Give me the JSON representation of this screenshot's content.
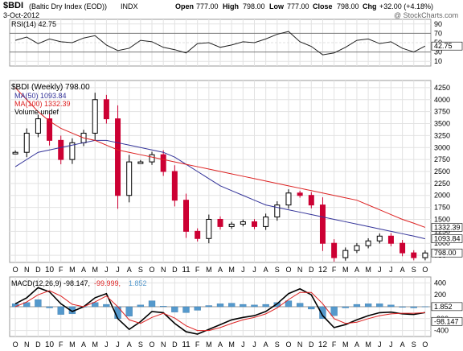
{
  "header": {
    "symbol": "$BDI",
    "name": "(Baltic Dry Index (EOD))",
    "exchange": "INDX",
    "date": "3-Oct-2012",
    "open_label": "Open",
    "open": "777.00",
    "high_label": "High",
    "high": "798.00",
    "low_label": "Low",
    "low": "777.00",
    "close_label": "Close",
    "close": "798.00",
    "chg_label": "Chg",
    "chg": "+32.00 (+4.18%)",
    "watermark": "@ StockCharts.com"
  },
  "rsi_panel": {
    "label": "RSI(14) 42.75",
    "ticks": [
      "90",
      "70",
      "50",
      "30",
      "10"
    ],
    "current": "42.75"
  },
  "price_panel": {
    "label": "$BDI (Weekly) 798.00",
    "ma50_label": "MA(50) 1093.84",
    "ma100_label": "MA(100) 1332.39",
    "volume_label": "Volume undef",
    "ticks": [
      "4250",
      "4000",
      "3750",
      "3500",
      "3250",
      "3000",
      "2750",
      "2500",
      "2250",
      "2000",
      "1750",
      "1500",
      "1250",
      "1000",
      "750"
    ],
    "badge_ma100": "1332.39",
    "badge_ma50": "1093.84",
    "badge_price": "798.00"
  },
  "macd_panel": {
    "label_main": "MACD(12,26,9) -98.147,",
    "label_signal": "-99.999,",
    "label_hist": "1.852",
    "ticks": [
      "400",
      "200",
      "0",
      "-200",
      "-400"
    ],
    "badge_hist": "1.852",
    "badge_macd": "-98.147"
  },
  "x_axis": {
    "top": [
      "O",
      "N",
      "D",
      "10",
      "F",
      "M",
      "A",
      "M",
      "J",
      "J",
      "A",
      "S",
      "O",
      "N",
      "D",
      "11",
      "F",
      "M",
      "A",
      "M",
      "J",
      "J",
      "A",
      "S",
      "O",
      "N",
      "D",
      "12",
      "F",
      "M",
      "A",
      "M",
      "J",
      "J",
      "A",
      "S",
      "O"
    ],
    "bottom": [
      "O",
      "N",
      "D",
      "10",
      "F",
      "M",
      "A",
      "M",
      "J",
      "J",
      "A",
      "S",
      "O",
      "N",
      "D",
      "11",
      "F",
      "M",
      "A",
      "M",
      "J",
      "J",
      "A",
      "S",
      "O",
      "N",
      "D",
      "12",
      "F",
      "M",
      "A",
      "M",
      "J",
      "J",
      "A",
      "S",
      "O"
    ]
  },
  "colors": {
    "up": "#000000",
    "down": "#cc0033",
    "ma50": "#333399",
    "ma100": "#dd2222",
    "hist": "#5599cc",
    "macd": "#000000",
    "signal": "#dd2222"
  },
  "chart_data": [
    {
      "type": "line",
      "title": "RSI(14) 42.75",
      "x": [
        "2009-10",
        "2009-11",
        "2009-12",
        "2010-01",
        "2010-02",
        "2010-03",
        "2010-04",
        "2010-05",
        "2010-06",
        "2010-07",
        "2010-08",
        "2010-09",
        "2010-10",
        "2010-11",
        "2010-12",
        "2011-01",
        "2011-02",
        "2011-03",
        "2011-04",
        "2011-05",
        "2011-06",
        "2011-07",
        "2011-08",
        "2011-09",
        "2011-10",
        "2011-11",
        "2011-12",
        "2012-01",
        "2012-02",
        "2012-03",
        "2012-04",
        "2012-05",
        "2012-06",
        "2012-07",
        "2012-08",
        "2012-09",
        "2012-10"
      ],
      "series": [
        {
          "values": [
            55,
            62,
            48,
            58,
            52,
            50,
            60,
            65,
            45,
            33,
            38,
            55,
            52,
            40,
            35,
            28,
            48,
            50,
            40,
            45,
            52,
            50,
            58,
            68,
            74,
            52,
            42,
            24,
            28,
            40,
            55,
            58,
            48,
            52,
            38,
            30,
            42.75
          ]
        }
      ],
      "ylim": [
        0,
        100
      ],
      "yticks": [
        10,
        30,
        50,
        70,
        90
      ]
    },
    {
      "type": "candlestick",
      "title": "$BDI (Weekly) 798.00",
      "x": [
        "2009-10",
        "2009-11",
        "2009-12",
        "2010-01",
        "2010-02",
        "2010-03",
        "2010-04",
        "2010-05",
        "2010-06",
        "2010-07",
        "2010-08",
        "2010-09",
        "2010-10",
        "2010-11",
        "2010-12",
        "2011-01",
        "2011-02",
        "2011-03",
        "2011-04",
        "2011-05",
        "2011-06",
        "2011-07",
        "2011-08",
        "2011-09",
        "2011-10",
        "2011-11",
        "2011-12",
        "2012-01",
        "2012-02",
        "2012-03",
        "2012-04",
        "2012-05",
        "2012-06",
        "2012-07",
        "2012-08",
        "2012-09",
        "2012-10"
      ],
      "series": [
        {
          "name": "price",
          "values": [
            2900,
            3300,
            3600,
            3150,
            2750,
            3100,
            3300,
            4000,
            3600,
            2000,
            2700,
            2700,
            2850,
            2500,
            1900,
            1250,
            1100,
            1500,
            1350,
            1400,
            1450,
            1350,
            1550,
            1800,
            2050,
            2000,
            1800,
            1000,
            700,
            850,
            950,
            1050,
            1150,
            1000,
            800,
            700,
            798
          ]
        },
        {
          "name": "MA(50)",
          "values": [
            2600,
            2750,
            2900,
            2950,
            3000,
            3050,
            3100,
            3150,
            3150,
            3100,
            3050,
            3000,
            2950,
            2900,
            2800,
            2650,
            2500,
            2350,
            2200,
            2100,
            2000,
            1900,
            1800,
            1750,
            1700,
            1650,
            1600,
            1550,
            1500,
            1450,
            1400,
            1350,
            1300,
            1250,
            1200,
            1150,
            1093.84
          ]
        },
        {
          "name": "MA(100)",
          "values": [
            4250,
            4000,
            3750,
            3550,
            3400,
            3300,
            3200,
            3150,
            3050,
            2950,
            2900,
            2850,
            2800,
            2750,
            2700,
            2650,
            2600,
            2550,
            2500,
            2450,
            2400,
            2350,
            2300,
            2250,
            2200,
            2150,
            2100,
            2050,
            2000,
            1950,
            1900,
            1800,
            1700,
            1600,
            1500,
            1420,
            1332.39
          ]
        }
      ],
      "ylim": [
        600,
        4400
      ],
      "yticks": [
        750,
        1000,
        1250,
        1500,
        1750,
        2000,
        2250,
        2500,
        2750,
        3000,
        3250,
        3500,
        3750,
        4000,
        4250
      ]
    },
    {
      "type": "line",
      "title": "MACD(12,26,9) -98.147, -99.999, 1.852",
      "x": [
        "2009-10",
        "2009-11",
        "2009-12",
        "2010-01",
        "2010-02",
        "2010-03",
        "2010-04",
        "2010-05",
        "2010-06",
        "2010-07",
        "2010-08",
        "2010-09",
        "2010-10",
        "2010-11",
        "2010-12",
        "2011-01",
        "2011-02",
        "2011-03",
        "2011-04",
        "2011-05",
        "2011-06",
        "2011-07",
        "2011-08",
        "2011-09",
        "2011-10",
        "2011-11",
        "2011-12",
        "2012-01",
        "2012-02",
        "2012-03",
        "2012-04",
        "2012-05",
        "2012-06",
        "2012-07",
        "2012-08",
        "2012-09",
        "2012-10"
      ],
      "series": [
        {
          "name": "MACD(12,26,9)",
          "values": [
            50,
            150,
            320,
            250,
            50,
            -80,
            0,
            150,
            220,
            -200,
            -380,
            -250,
            -80,
            -100,
            -280,
            -420,
            -460,
            -380,
            -300,
            -220,
            -180,
            -150,
            -80,
            50,
            220,
            300,
            200,
            -150,
            -350,
            -300,
            -220,
            -150,
            -100,
            -90,
            -120,
            -130,
            -98.147
          ]
        },
        {
          "name": "signal",
          "values": [
            0,
            80,
            200,
            270,
            180,
            40,
            0,
            80,
            180,
            0,
            -220,
            -280,
            -180,
            -110,
            -190,
            -320,
            -400,
            -400,
            -350,
            -280,
            -220,
            -180,
            -120,
            -20,
            120,
            240,
            240,
            50,
            -200,
            -280,
            -260,
            -200,
            -150,
            -120,
            -110,
            -110,
            -99.999
          ]
        },
        {
          "name": "histogram",
          "values": [
            50,
            70,
            120,
            -20,
            -130,
            -120,
            0,
            70,
            40,
            -200,
            -160,
            30,
            100,
            10,
            -90,
            -100,
            -60,
            20,
            50,
            60,
            40,
            30,
            40,
            70,
            100,
            60,
            -40,
            -200,
            -150,
            -20,
            40,
            50,
            50,
            30,
            -10,
            -20,
            1.852
          ]
        }
      ],
      "ylim": [
        -500,
        500
      ],
      "yticks": [
        -400,
        -200,
        0,
        200,
        400
      ]
    }
  ]
}
